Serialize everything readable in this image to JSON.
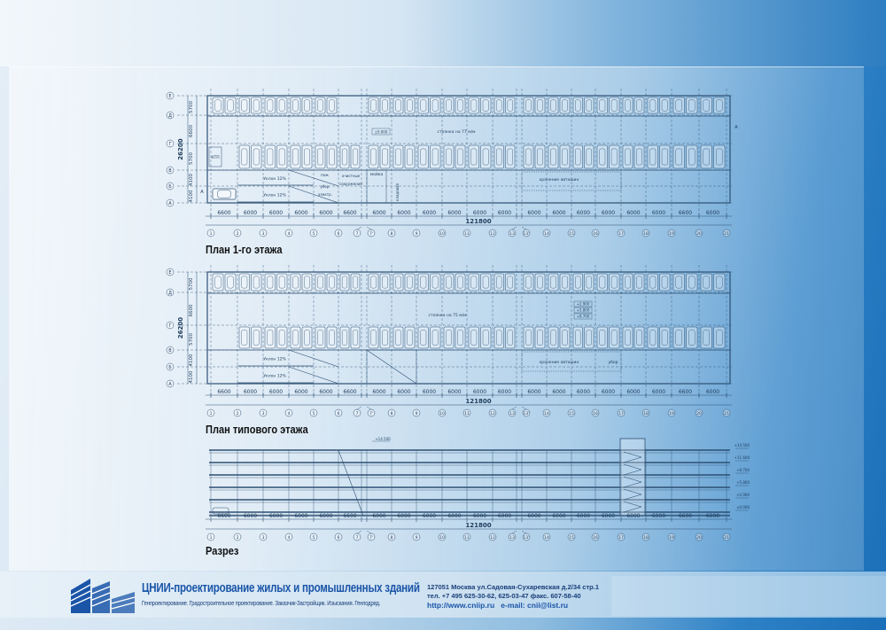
{
  "drawings": {
    "axes_x": [
      "1",
      "2",
      "3",
      "4",
      "5",
      "6",
      "7",
      "7'",
      "8",
      "9",
      "10",
      "11",
      "12",
      "13",
      "13'",
      "14",
      "15",
      "16",
      "17",
      "18",
      "19",
      "20",
      "21"
    ],
    "spans": [
      "6600",
      "6000",
      "6000",
      "6000",
      "6000",
      "6600",
      "",
      "6000",
      "6000",
      "6000",
      "6000",
      "6000",
      "6000",
      "",
      "6000",
      "6000",
      "6000",
      "6000",
      "6000",
      "6000",
      "6600",
      "6000"
    ],
    "total_length": "121800",
    "axes_y": [
      "Е",
      "Д",
      "Г",
      "В",
      "Б",
      "А"
    ],
    "dims_y": [
      "5700",
      "6600",
      "5700",
      "4100",
      "4100"
    ],
    "total_width": "26200",
    "section_mark": "А",
    "plan1": {
      "title": "План 1-го этажа",
      "level": "±0.000",
      "parking_label": "стоянка на 77 м/м",
      "ramp_up": "Уклон 12%",
      "ramp_down": "Уклон 12%",
      "rooms": [
        "КТП",
        "пож.",
        "убор.",
        "электр.",
        "очистные сооружения",
        "мойка",
        "кладовая",
        "хранение автошин"
      ]
    },
    "plan2": {
      "title": "План типового этажа",
      "levels": [
        "+2.900",
        "+5.800",
        "+8.700"
      ],
      "parking_label": "стоянка на 75 м/м",
      "ramp_up": "Уклон 12%",
      "ramp_down": "Уклон 12%",
      "rooms": [
        "хранение автошин",
        "убор"
      ]
    },
    "section": {
      "title": "Разрез",
      "top_level": "+14.500",
      "levels": [
        "+14.500",
        "+11.600",
        "+8.700",
        "+5.800",
        "+2.900",
        "±0.000"
      ]
    }
  },
  "footer": {
    "company": "ЦНИИ-проектирование жилых и промышленных зданий",
    "services": "Генпроектирование. Градостроительное проектирование. Заказчик-Застройщик. Изыскания. Генподряд.",
    "address": "127051 Москва ул.Садовая-Сухаревская д.2/34 стр.1",
    "phones": "тел. +7 495  625-30-62,  625-03-47  факс. 607-58-40",
    "web": "http://www.cniip.ru",
    "email": "e-mail: cnii@list.ru"
  },
  "colors": {
    "line": "#2c4f72",
    "brand": "#1a55a8"
  }
}
